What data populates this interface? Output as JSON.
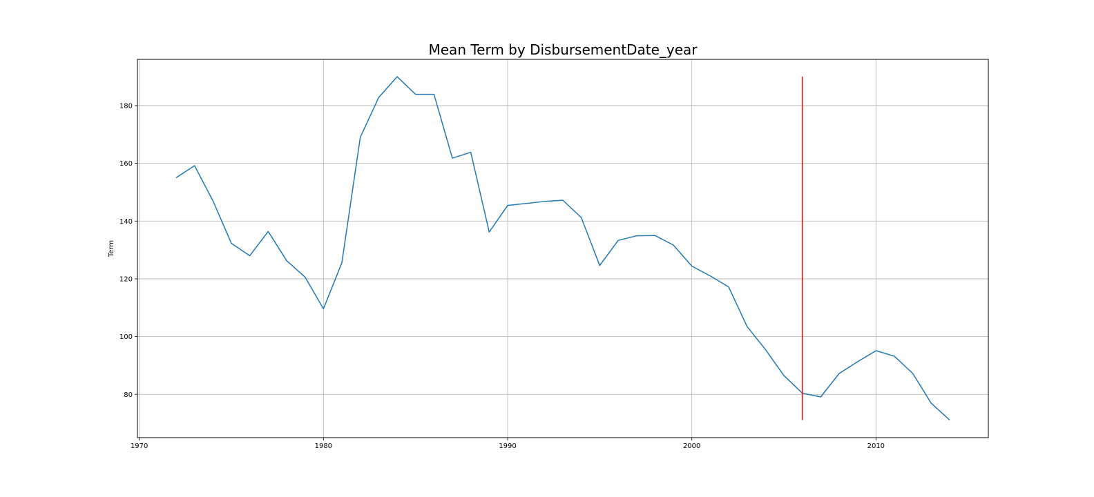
{
  "chart_data": {
    "type": "line",
    "title": "Mean Term by DisbursementDate_year",
    "xlabel": "",
    "ylabel": "Term",
    "xlim": [
      1969.9,
      2016.1
    ],
    "ylim": [
      65,
      196
    ],
    "xticks": [
      1970,
      1980,
      1990,
      2000,
      2010
    ],
    "yticks": [
      80,
      100,
      120,
      140,
      160,
      180
    ],
    "grid": true,
    "series": [
      {
        "color": "#1f77b4",
        "x": [
          1972,
          1973,
          1974,
          1975,
          1976,
          1977,
          1978,
          1979,
          1980,
          1981,
          1982,
          1983,
          1984,
          1985,
          1986,
          1987,
          1988,
          1989,
          1990,
          1991,
          1992,
          1993,
          1994,
          1995,
          1996,
          1997,
          1998,
          1999,
          2000,
          2001,
          2002,
          2003,
          2004,
          2005,
          2006,
          2007,
          2008,
          2009,
          2010,
          2011,
          2012,
          2013,
          2014
        ],
        "y": [
          155,
          159.2,
          147,
          132.3,
          128,
          136.4,
          126.3,
          120.6,
          109.6,
          125.6,
          169,
          182.8,
          190,
          183.9,
          183.9,
          161.8,
          163.8,
          136.2,
          145.4,
          146.1,
          146.8,
          147.2,
          141.2,
          124.6,
          133.3,
          134.9,
          135,
          131.7,
          124.4,
          121,
          117.2,
          103.5,
          95.5,
          86.5,
          80.4,
          79.1,
          87.2,
          91.3,
          95.1,
          93.2,
          87.2,
          76.9,
          71.1
        ]
      }
    ],
    "vline": {
      "x": 2006,
      "y_range": [
        71.1,
        190
      ],
      "color": "#ff0000"
    }
  }
}
